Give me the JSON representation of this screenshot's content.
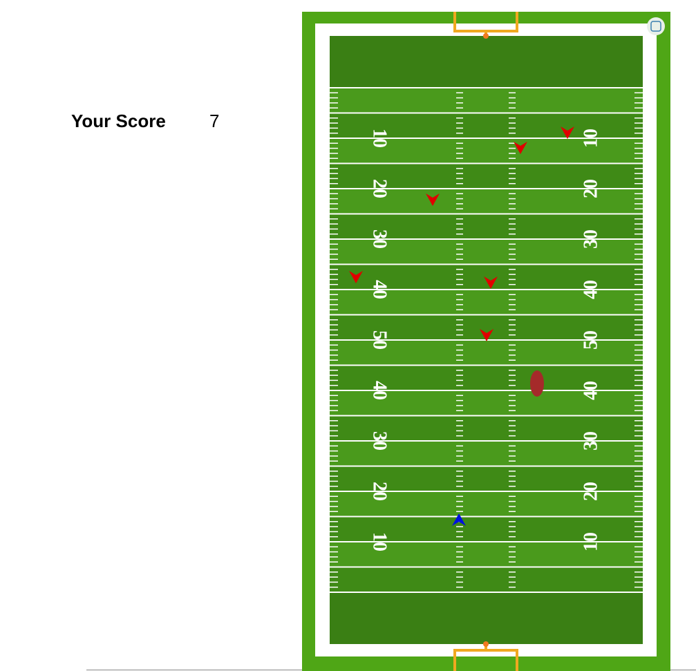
{
  "score_panel": {
    "label": "Your Score",
    "score": "7"
  },
  "field": {
    "yard_numbers": [
      "10",
      "20",
      "30",
      "40",
      "50",
      "40",
      "30",
      "20",
      "10"
    ]
  }
}
